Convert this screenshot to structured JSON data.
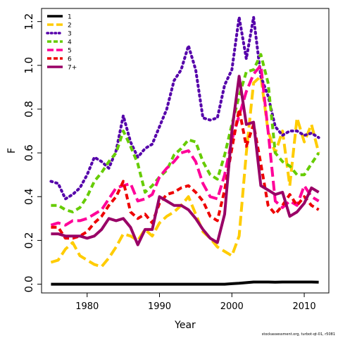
{
  "footer": "stockassessment.org, turbot-qt-01, r5081",
  "chart_data": {
    "type": "line",
    "xlabel": "Year",
    "ylabel": "F",
    "xlim": [
      1973.7,
      2013.4
    ],
    "ylim": [
      -0.04,
      1.26
    ],
    "xticks": [
      1980,
      1990,
      2000,
      2010
    ],
    "yticks": [
      0.0,
      0.2,
      0.4,
      0.6,
      0.8,
      1.0,
      1.2
    ],
    "yticklabels": [
      "0.0",
      "0.2",
      "0.4",
      "0.6",
      "0.8",
      "1.0",
      "1.2"
    ],
    "legend_position": "top-left",
    "x": [
      1975,
      1976,
      1977,
      1978,
      1979,
      1980,
      1981,
      1982,
      1983,
      1984,
      1985,
      1986,
      1987,
      1988,
      1989,
      1990,
      1991,
      1992,
      1993,
      1994,
      1995,
      1996,
      1997,
      1998,
      1999,
      2000,
      2001,
      2002,
      2003,
      2004,
      2005,
      2006,
      2007,
      2008,
      2009,
      2010,
      2011,
      2012
    ],
    "series": [
      {
        "name": "1",
        "color": "#000000",
        "dash": "solid",
        "values": [
          0.0,
          0.0,
          0.0,
          0.0,
          0.0,
          0.0,
          0.0,
          0.0,
          0.0,
          0.0,
          0.0,
          0.0,
          0.0,
          0.0,
          0.0,
          0.0,
          0.0,
          0.0,
          0.0,
          0.0,
          0.0,
          0.0,
          0.0,
          0.0,
          0.0,
          0.002,
          0.004,
          0.007,
          0.01,
          0.01,
          0.01,
          0.009,
          0.01,
          0.01,
          0.01,
          0.01,
          0.01,
          0.009
        ]
      },
      {
        "name": "2",
        "color": "#FFCC00",
        "dash": "long",
        "values": [
          0.1,
          0.11,
          0.16,
          0.19,
          0.13,
          0.11,
          0.09,
          0.08,
          0.12,
          0.17,
          0.23,
          0.22,
          0.2,
          0.25,
          0.22,
          0.28,
          0.31,
          0.33,
          0.36,
          0.4,
          0.32,
          0.24,
          0.21,
          0.17,
          0.15,
          0.13,
          0.22,
          0.6,
          0.92,
          0.95,
          0.7,
          0.6,
          0.7,
          0.45,
          0.76,
          0.65,
          0.73,
          0.6
        ]
      },
      {
        "name": "3",
        "color": "#5500AA",
        "dash": "dotted",
        "values": [
          0.47,
          0.46,
          0.39,
          0.41,
          0.44,
          0.5,
          0.58,
          0.56,
          0.53,
          0.61,
          0.77,
          0.65,
          0.58,
          0.62,
          0.64,
          0.72,
          0.8,
          0.93,
          0.98,
          1.09,
          0.98,
          0.76,
          0.75,
          0.76,
          0.91,
          0.98,
          1.22,
          1.03,
          1.22,
          0.95,
          0.86,
          0.72,
          0.68,
          0.7,
          0.7,
          0.68,
          0.69,
          0.67
        ]
      },
      {
        "name": "4",
        "color": "#66CC00",
        "dash": "medium",
        "values": [
          0.36,
          0.36,
          0.34,
          0.33,
          0.35,
          0.4,
          0.47,
          0.51,
          0.56,
          0.6,
          0.7,
          0.63,
          0.55,
          0.42,
          0.45,
          0.49,
          0.52,
          0.59,
          0.62,
          0.66,
          0.65,
          0.56,
          0.5,
          0.48,
          0.59,
          0.73,
          0.86,
          0.97,
          0.98,
          1.05,
          0.92,
          0.6,
          0.56,
          0.54,
          0.5,
          0.5,
          0.55,
          0.6
        ]
      },
      {
        "name": "5",
        "color": "#FF0099",
        "dash": "long",
        "values": [
          0.27,
          0.28,
          0.27,
          0.29,
          0.29,
          0.3,
          0.32,
          0.34,
          0.39,
          0.44,
          0.45,
          0.46,
          0.38,
          0.39,
          0.41,
          0.49,
          0.53,
          0.56,
          0.6,
          0.61,
          0.56,
          0.46,
          0.4,
          0.39,
          0.5,
          0.66,
          0.77,
          0.88,
          0.96,
          1.0,
          0.7,
          0.38,
          0.35,
          0.38,
          0.36,
          0.45,
          0.4,
          0.38
        ]
      },
      {
        "name": "6",
        "color": "#EE0000",
        "dash": "medium",
        "values": [
          0.26,
          0.26,
          0.21,
          0.21,
          0.22,
          0.24,
          0.28,
          0.31,
          0.36,
          0.4,
          0.47,
          0.33,
          0.3,
          0.32,
          0.28,
          0.37,
          0.41,
          0.42,
          0.44,
          0.45,
          0.42,
          0.38,
          0.31,
          0.29,
          0.43,
          0.62,
          0.8,
          0.63,
          0.73,
          0.55,
          0.36,
          0.32,
          0.36,
          0.41,
          0.36,
          0.4,
          0.36,
          0.34
        ]
      },
      {
        "name": "7+",
        "color": "#990066",
        "dash": "solid",
        "values": [
          0.23,
          0.23,
          0.22,
          0.22,
          0.22,
          0.21,
          0.22,
          0.25,
          0.3,
          0.29,
          0.3,
          0.26,
          0.18,
          0.25,
          0.25,
          0.4,
          0.38,
          0.36,
          0.36,
          0.34,
          0.3,
          0.25,
          0.21,
          0.19,
          0.32,
          0.7,
          0.95,
          0.73,
          0.74,
          0.45,
          0.43,
          0.41,
          0.42,
          0.31,
          0.33,
          0.37,
          0.44,
          0.42
        ]
      }
    ]
  }
}
